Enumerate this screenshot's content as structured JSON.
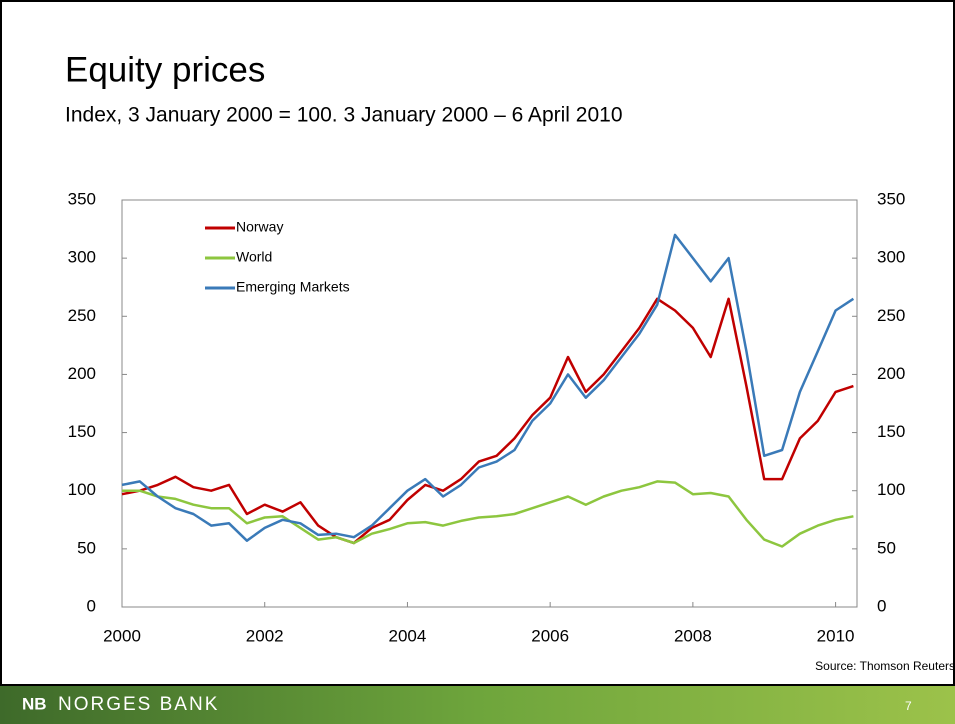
{
  "chart_data": {
    "type": "line",
    "title": "Equity prices",
    "subtitle": "Index, 3 January 2000 = 100. 3 January 2000 – 6  April 2010",
    "source": "Source: Thomson Reuters",
    "x": [
      2000,
      2000.25,
      2000.5,
      2000.75,
      2001,
      2001.25,
      2001.5,
      2001.75,
      2002,
      2002.25,
      2002.5,
      2002.75,
      2003,
      2003.25,
      2003.5,
      2003.75,
      2004,
      2004.25,
      2004.5,
      2004.75,
      2005,
      2005.25,
      2005.5,
      2005.75,
      2006,
      2006.25,
      2006.5,
      2006.75,
      2007,
      2007.25,
      2007.5,
      2007.75,
      2008,
      2008.25,
      2008.5,
      2008.75,
      2009,
      2009.25,
      2009.5,
      2009.75,
      2010,
      2010.25
    ],
    "series": [
      {
        "name": "Norway",
        "color": "#c00000",
        "values": [
          97,
          100,
          105,
          112,
          103,
          100,
          105,
          80,
          88,
          82,
          90,
          70,
          60,
          55,
          68,
          75,
          92,
          105,
          100,
          110,
          125,
          130,
          145,
          165,
          180,
          215,
          185,
          200,
          220,
          240,
          265,
          255,
          240,
          215,
          265,
          190,
          110,
          110,
          145,
          160,
          185,
          190
        ]
      },
      {
        "name": "World",
        "color": "#8dc63f",
        "values": [
          100,
          100,
          95,
          93,
          88,
          85,
          85,
          72,
          77,
          78,
          68,
          58,
          60,
          55,
          63,
          67,
          72,
          73,
          70,
          74,
          77,
          78,
          80,
          85,
          90,
          95,
          88,
          95,
          100,
          103,
          108,
          107,
          97,
          98,
          95,
          75,
          58,
          52,
          63,
          70,
          75,
          78
        ]
      },
      {
        "name": "Emerging Markets",
        "color": "#3a7ab8",
        "values": [
          105,
          108,
          95,
          85,
          80,
          70,
          72,
          57,
          68,
          75,
          72,
          62,
          63,
          60,
          70,
          85,
          100,
          110,
          95,
          105,
          120,
          125,
          135,
          160,
          175,
          200,
          180,
          195,
          215,
          235,
          260,
          320,
          300,
          280,
          300,
          220,
          130,
          135,
          185,
          220,
          255,
          265
        ]
      }
    ],
    "xlim": [
      2000,
      2010.3
    ],
    "xticks": [
      2000,
      2002,
      2004,
      2006,
      2008,
      2010
    ],
    "ylim": [
      0,
      350
    ],
    "yticks": [
      0,
      50,
      100,
      150,
      200,
      250,
      300,
      350
    ],
    "y2lim": [
      0,
      350
    ],
    "y2ticks": [
      0,
      50,
      100,
      150,
      200,
      250,
      300,
      350
    ],
    "legend": "upper left"
  },
  "footer": {
    "logo": "NB",
    "brand": "NORGES BANK",
    "page": "7"
  }
}
